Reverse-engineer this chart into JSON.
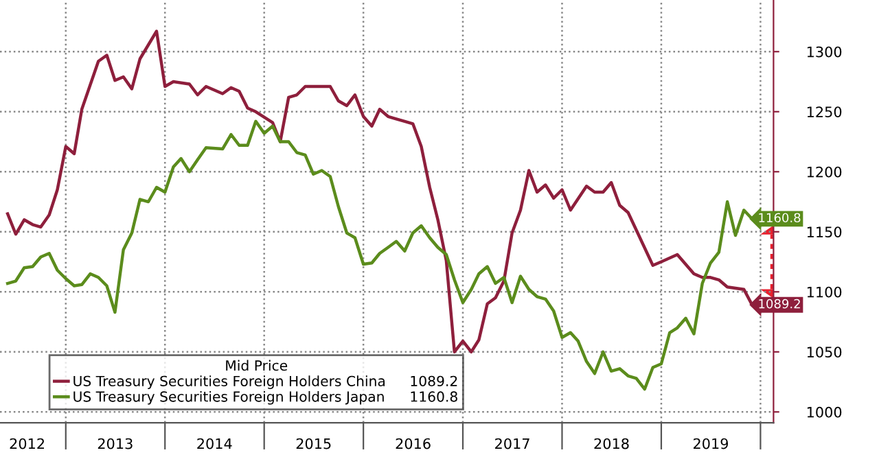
{
  "chart_data": {
    "type": "line",
    "legend_title": "Mid Price",
    "xlim": [
      "2012-05-04",
      "2020-02-18"
    ],
    "xticks": [
      {
        "value": "2012-08-12",
        "label": "2012"
      },
      {
        "value": "2013-01-01",
        "label": null
      },
      {
        "value": "2013-07-02",
        "label": "2013"
      },
      {
        "value": "2014-01-01",
        "label": null
      },
      {
        "value": "2014-07-02",
        "label": "2014"
      },
      {
        "value": "2015-01-01",
        "label": null
      },
      {
        "value": "2015-07-02",
        "label": "2015"
      },
      {
        "value": "2016-01-01",
        "label": null
      },
      {
        "value": "2016-07-02",
        "label": "2016"
      },
      {
        "value": "2017-01-01",
        "label": null
      },
      {
        "value": "2017-07-02",
        "label": "2017"
      },
      {
        "value": "2018-01-01",
        "label": null
      },
      {
        "value": "2018-07-02",
        "label": "2018"
      },
      {
        "value": "2019-01-01",
        "label": null
      },
      {
        "value": "2019-07-02",
        "label": "2019"
      },
      {
        "value": "2020-01-01",
        "label": null
      }
    ],
    "ylim": [
      991,
      1343
    ],
    "yticks": [
      1000,
      1050,
      1100,
      1150,
      1200,
      1250,
      1300
    ],
    "grid": true,
    "legend": "bottom left",
    "marker": "none",
    "line_style": "solid",
    "series": [
      {
        "name": "US Treasury Securities Foreign Holders China",
        "color": "#8e1f3c",
        "x": [
          "2012-06",
          "2012-07",
          "2012-08",
          "2012-09",
          "2012-10",
          "2012-11",
          "2012-12",
          "2013-01",
          "2013-02",
          "2013-03",
          "2013-05",
          "2013-06",
          "2013-07",
          "2013-08",
          "2013-09",
          "2013-10",
          "2013-12",
          "2014-01",
          "2014-02",
          "2014-04",
          "2014-05",
          "2014-06",
          "2014-08",
          "2014-09",
          "2014-10",
          "2014-11",
          "2014-12",
          "2015-02",
          "2015-03",
          "2015-04",
          "2015-05",
          "2015-06",
          "2015-09",
          "2015-10",
          "2015-11",
          "2015-12",
          "2016-01",
          "2016-02",
          "2016-03",
          "2016-04",
          "2016-05",
          "2016-06",
          "2016-07",
          "2016-08",
          "2016-09",
          "2016-10",
          "2016-11",
          "2016-12",
          "2017-01",
          "2017-02",
          "2017-03",
          "2017-04",
          "2017-05",
          "2017-06",
          "2017-07",
          "2017-08",
          "2017-09",
          "2017-10",
          "2017-11",
          "2017-12",
          "2018-01",
          "2018-02",
          "2018-04",
          "2018-05",
          "2018-06",
          "2018-07",
          "2018-08",
          "2018-09",
          "2018-12",
          "2019-01",
          "2019-03",
          "2019-05",
          "2019-06",
          "2019-07",
          "2019-08",
          "2019-09",
          "2019-11",
          "2019-12"
        ],
        "values": [
          1165,
          1148,
          1160,
          1156,
          1154,
          1164,
          1185,
          1221,
          1215,
          1252,
          1292,
          1297,
          1276,
          1279,
          1269,
          1294,
          1317,
          1271,
          1275,
          1273,
          1264,
          1271,
          1265,
          1270,
          1267,
          1253,
          1250,
          1241,
          1225,
          1262,
          1264,
          1271,
          1271,
          1259,
          1255,
          1264,
          1246,
          1238,
          1252,
          1246,
          1244,
          1242,
          1240,
          1221,
          1187,
          1160,
          1126,
          1050,
          1059,
          1050,
          1060,
          1090,
          1095,
          1109,
          1149,
          1168,
          1201,
          1183,
          1189,
          1178,
          1185,
          1168,
          1188,
          1183,
          1183,
          1191,
          1172,
          1166,
          1122,
          1125,
          1131,
          1115,
          1112,
          1112,
          1110,
          1104,
          1102,
          1089.2
        ],
        "value_labels": [
          null,
          null,
          null,
          null,
          null,
          null,
          null,
          null,
          null,
          null,
          null,
          null,
          null,
          null,
          null,
          null,
          null,
          null,
          null,
          null,
          null,
          null,
          null,
          null,
          null,
          null,
          null,
          null,
          null,
          null,
          null,
          null,
          null,
          null,
          null,
          null,
          null,
          null,
          null,
          null,
          null,
          null,
          null,
          null,
          null,
          null,
          null,
          null,
          null,
          null,
          null,
          null,
          null,
          null,
          null,
          null,
          null,
          null,
          null,
          null,
          null,
          null,
          null,
          null,
          null,
          null,
          null,
          null,
          null,
          null,
          null,
          null,
          null,
          null,
          null,
          null,
          null,
          "1089.2"
        ]
      },
      {
        "name": "US Treasury Securities Foreign Holders Japan",
        "color": "#5b8c1c",
        "x": [
          "2012-06",
          "2012-07",
          "2012-08",
          "2012-09",
          "2012-10",
          "2012-11",
          "2012-12",
          "2013-01",
          "2013-02",
          "2013-03",
          "2013-04",
          "2013-05",
          "2013-06",
          "2013-07",
          "2013-08",
          "2013-09",
          "2013-10",
          "2013-11",
          "2013-12",
          "2014-01",
          "2014-02",
          "2014-03",
          "2014-04",
          "2014-05",
          "2014-06",
          "2014-08",
          "2014-09",
          "2014-10",
          "2014-11",
          "2014-12",
          "2015-01",
          "2015-02",
          "2015-03",
          "2015-04",
          "2015-05",
          "2015-06",
          "2015-07",
          "2015-08",
          "2015-09",
          "2015-10",
          "2015-11",
          "2015-12",
          "2016-01",
          "2016-02",
          "2016-03",
          "2016-04",
          "2016-05",
          "2016-06",
          "2016-07",
          "2016-08",
          "2016-09",
          "2016-10",
          "2016-11",
          "2016-12",
          "2017-01",
          "2017-02",
          "2017-03",
          "2017-04",
          "2017-05",
          "2017-06",
          "2017-07",
          "2017-08",
          "2017-09",
          "2017-10",
          "2017-11",
          "2017-12",
          "2018-01",
          "2018-02",
          "2018-03",
          "2018-04",
          "2018-05",
          "2018-06",
          "2018-07",
          "2018-08",
          "2018-09",
          "2018-10",
          "2018-11",
          "2018-12",
          "2019-01",
          "2019-02",
          "2019-03",
          "2019-04",
          "2019-05",
          "2019-06",
          "2019-07",
          "2019-08",
          "2019-09",
          "2019-10",
          "2019-11",
          "2019-12"
        ],
        "values": [
          1107,
          1109,
          1120,
          1121,
          1129,
          1132,
          1118,
          1111,
          1105,
          1106,
          1115,
          1112,
          1105,
          1083,
          1135,
          1149,
          1177,
          1175,
          1187,
          1183,
          1204,
          1211,
          1200,
          1210,
          1220,
          1219,
          1231,
          1222,
          1222,
          1242,
          1232,
          1238,
          1225,
          1225,
          1216,
          1214,
          1198,
          1201,
          1196,
          1171,
          1149,
          1145,
          1123,
          1124,
          1132,
          1137,
          1142,
          1134,
          1149,
          1155,
          1145,
          1137,
          1131,
          1110,
          1091,
          1102,
          1115,
          1121,
          1107,
          1112,
          1091,
          1113,
          1102,
          1096,
          1094,
          1084,
          1062,
          1066,
          1059,
          1042,
          1032,
          1050,
          1034,
          1036,
          1030,
          1028,
          1019,
          1037,
          1040,
          1066,
          1070,
          1078,
          1065,
          1107,
          1124,
          1133,
          1175,
          1147,
          1168,
          1160.8
        ],
        "value_labels": [
          null,
          null,
          null,
          null,
          null,
          null,
          null,
          null,
          null,
          null,
          null,
          null,
          null,
          null,
          null,
          null,
          null,
          null,
          null,
          null,
          null,
          null,
          null,
          null,
          null,
          null,
          null,
          null,
          null,
          null,
          null,
          null,
          null,
          null,
          null,
          null,
          null,
          null,
          null,
          null,
          null,
          null,
          null,
          null,
          null,
          null,
          null,
          null,
          null,
          null,
          null,
          null,
          null,
          null,
          null,
          null,
          null,
          null,
          null,
          null,
          null,
          null,
          null,
          null,
          null,
          null,
          null,
          null,
          null,
          null,
          null,
          null,
          null,
          null,
          null,
          null,
          null,
          null,
          null,
          null,
          null,
          null,
          null,
          null,
          null,
          null,
          null,
          null,
          null,
          "1160.8"
        ]
      }
    ]
  }
}
